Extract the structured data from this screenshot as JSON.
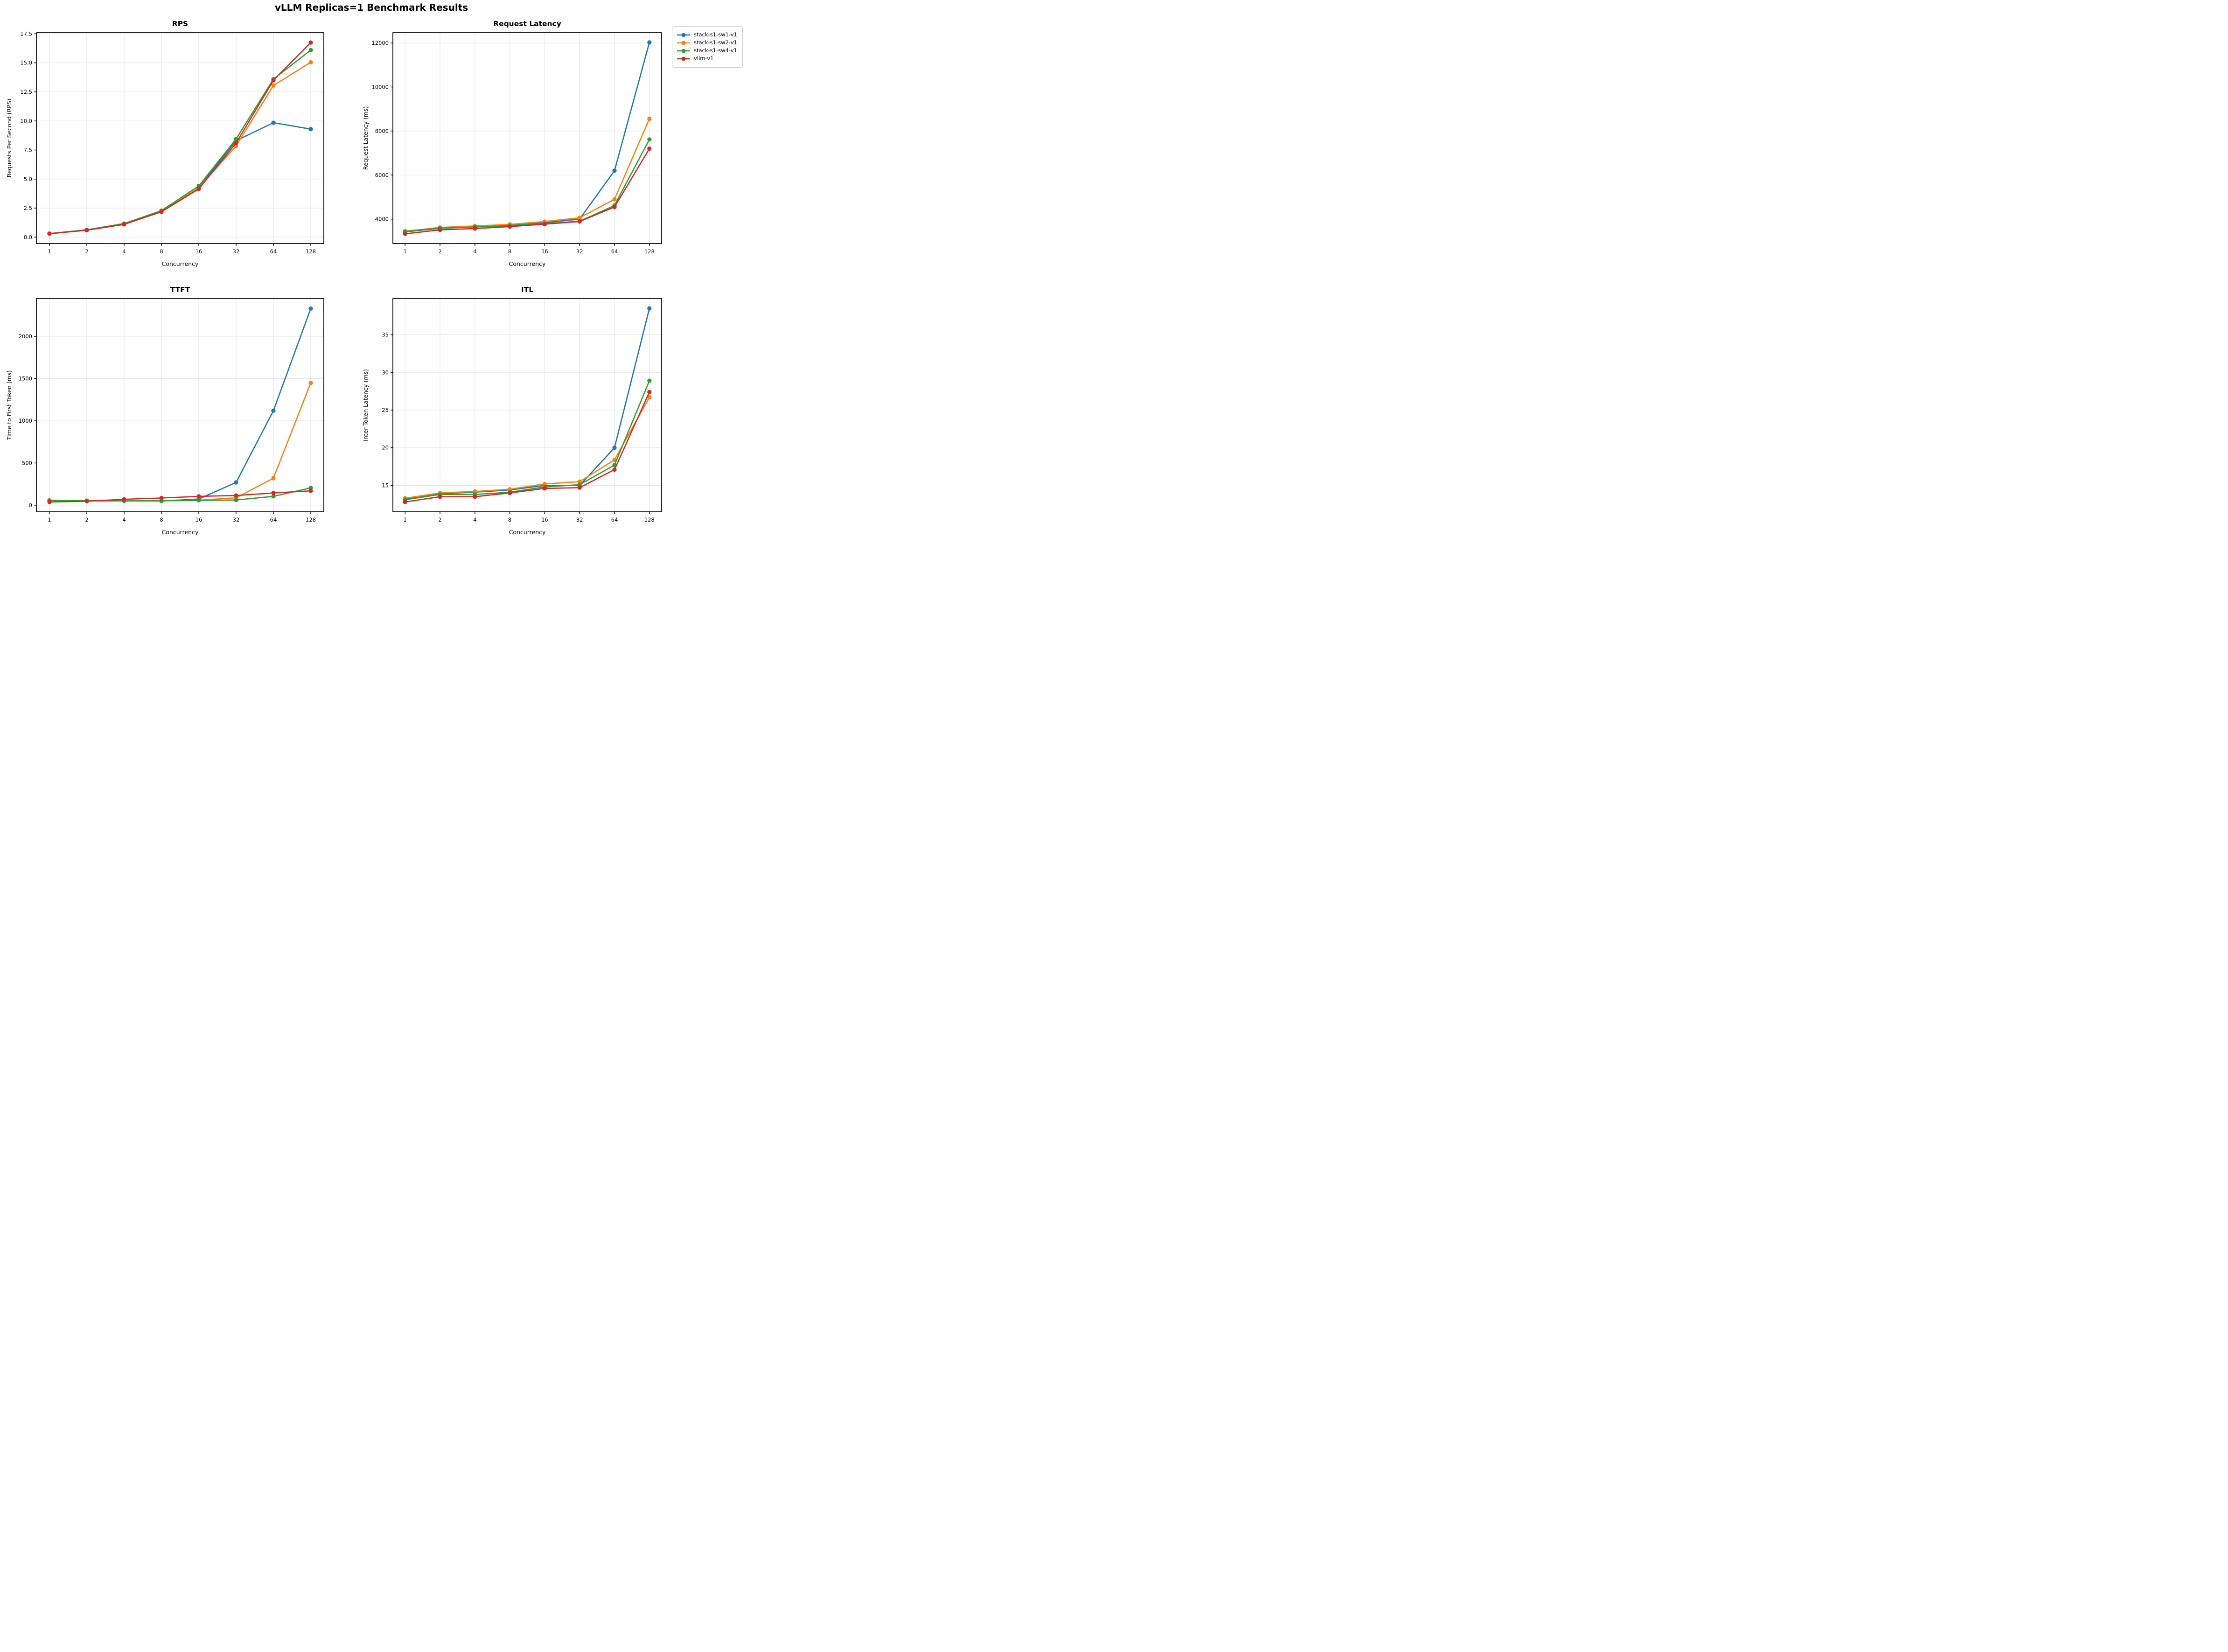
{
  "figure": {
    "suptitle": "vLLM Replicas=1 Benchmark Results",
    "background_color": "#ffffff",
    "grid_color": "#e3e3e3",
    "spine_color": "#000000"
  },
  "legend": {
    "position": "top-right",
    "items": [
      {
        "label": "stack-s1-sw1-v1",
        "color": "#1f77b4"
      },
      {
        "label": "stack-s1-sw2-v1",
        "color": "#ff7f0e"
      },
      {
        "label": "stack-s1-sw4-v1",
        "color": "#2ca02c"
      },
      {
        "label": "vllm-v1",
        "color": "#d62728"
      }
    ]
  },
  "chart_data": [
    {
      "key": "rps",
      "type": "line",
      "title": "RPS",
      "xlabel": "Concurrency",
      "ylabel": "Requests Per Second (RPS)",
      "x_scale": "log2-categorical",
      "grid": true,
      "categories": [
        "1",
        "2",
        "4",
        "8",
        "16",
        "32",
        "64",
        "128"
      ],
      "ytick_labels": [
        "0.0",
        "2.5",
        "5.0",
        "7.5",
        "10.0",
        "12.5",
        "15.0",
        "17.5"
      ],
      "yticks": [
        0.0,
        2.5,
        5.0,
        7.5,
        10.0,
        12.5,
        15.0,
        17.5
      ],
      "ylim": [
        -0.55,
        17.6
      ],
      "series": [
        {
          "name": "stack-s1-sw1-v1",
          "color": "#1f77b4",
          "values": [
            0.3,
            0.6,
            1.1,
            2.2,
            4.25,
            8.3,
            9.85,
            9.3
          ]
        },
        {
          "name": "stack-s1-sw2-v1",
          "color": "#ff7f0e",
          "values": [
            0.3,
            0.6,
            1.1,
            2.2,
            4.25,
            7.85,
            13.05,
            15.05
          ]
        },
        {
          "name": "stack-s1-sw4-v1",
          "color": "#2ca02c",
          "values": [
            0.31,
            0.63,
            1.17,
            2.28,
            4.4,
            8.45,
            13.6,
            16.1
          ]
        },
        {
          "name": "vllm-v1",
          "color": "#d62728",
          "values": [
            0.3,
            0.6,
            1.1,
            2.18,
            4.15,
            8.1,
            13.5,
            16.75
          ]
        }
      ]
    },
    {
      "key": "latency",
      "type": "line",
      "title": "Request Latency",
      "xlabel": "Concurrency",
      "ylabel": "Request Latency (ms)",
      "x_scale": "log2-categorical",
      "grid": true,
      "categories": [
        "1",
        "2",
        "4",
        "8",
        "16",
        "32",
        "64",
        "128"
      ],
      "ytick_labels": [
        "4000",
        "6000",
        "8000",
        "10000",
        "12000"
      ],
      "yticks": [
        4000,
        6000,
        8000,
        10000,
        12000
      ],
      "ylim": [
        2890,
        12470
      ],
      "series": [
        {
          "name": "stack-s1-sw1-v1",
          "color": "#1f77b4",
          "values": [
            3420,
            3580,
            3640,
            3710,
            3830,
            4000,
            6200,
            12030
          ]
        },
        {
          "name": "stack-s1-sw2-v1",
          "color": "#ff7f0e",
          "values": [
            3450,
            3620,
            3690,
            3760,
            3890,
            4060,
            4900,
            8560
          ]
        },
        {
          "name": "stack-s1-sw4-v1",
          "color": "#2ca02c",
          "values": [
            3440,
            3590,
            3640,
            3700,
            3790,
            3900,
            4620,
            7620
          ]
        },
        {
          "name": "vllm-v1",
          "color": "#d62728",
          "values": [
            3330,
            3510,
            3570,
            3660,
            3770,
            3890,
            4550,
            7200
          ]
        }
      ]
    },
    {
      "key": "ttft",
      "type": "line",
      "title": "TTFT",
      "xlabel": "Concurrency",
      "ylabel": "Time to First Token (ms)",
      "x_scale": "log2-categorical",
      "grid": true,
      "categories": [
        "1",
        "2",
        "4",
        "8",
        "16",
        "32",
        "64",
        "128"
      ],
      "ytick_labels": [
        "0",
        "500",
        "1000",
        "1500",
        "2000"
      ],
      "yticks": [
        0,
        500,
        1000,
        1500,
        2000
      ],
      "ylim": [
        -78,
        2448
      ],
      "series": [
        {
          "name": "stack-s1-sw1-v1",
          "color": "#1f77b4",
          "values": [
            55,
            52,
            50,
            50,
            73,
            270,
            1120,
            2330
          ]
        },
        {
          "name": "stack-s1-sw2-v1",
          "color": "#ff7f0e",
          "values": [
            57,
            54,
            52,
            53,
            60,
            88,
            320,
            1450
          ]
        },
        {
          "name": "stack-s1-sw4-v1",
          "color": "#2ca02c",
          "values": [
            57,
            54,
            52,
            52,
            58,
            62,
            105,
            205
          ]
        },
        {
          "name": "vllm-v1",
          "color": "#d62728",
          "values": [
            38,
            47,
            70,
            85,
            105,
            115,
            145,
            170
          ]
        }
      ]
    },
    {
      "key": "itl",
      "type": "line",
      "title": "ITL",
      "xlabel": "Concurrency",
      "ylabel": "Inter Token Latency (ms)",
      "x_scale": "log2-categorical",
      "grid": true,
      "categories": [
        "1",
        "2",
        "4",
        "8",
        "16",
        "32",
        "64",
        "128"
      ],
      "ytick_labels": [
        "15",
        "20",
        "25",
        "30",
        "35"
      ],
      "yticks": [
        15,
        20,
        25,
        30,
        35
      ],
      "ylim": [
        11.5,
        39.8
      ],
      "series": [
        {
          "name": "stack-s1-sw1-v1",
          "color": "#1f77b4",
          "values": [
            13.2,
            13.9,
            14.1,
            14.4,
            15.0,
            15.0,
            20.0,
            38.5
          ]
        },
        {
          "name": "stack-s1-sw2-v1",
          "color": "#ff7f0e",
          "values": [
            13.3,
            14.0,
            14.2,
            14.5,
            15.2,
            15.5,
            18.4,
            26.7
          ]
        },
        {
          "name": "stack-s1-sw4-v1",
          "color": "#2ca02c",
          "values": [
            13.1,
            13.8,
            13.8,
            14.1,
            14.8,
            15.1,
            17.7,
            28.9
          ]
        },
        {
          "name": "vllm-v1",
          "color": "#d62728",
          "values": [
            12.8,
            13.5,
            13.5,
            14.0,
            14.6,
            14.7,
            17.1,
            27.4
          ]
        }
      ]
    }
  ]
}
